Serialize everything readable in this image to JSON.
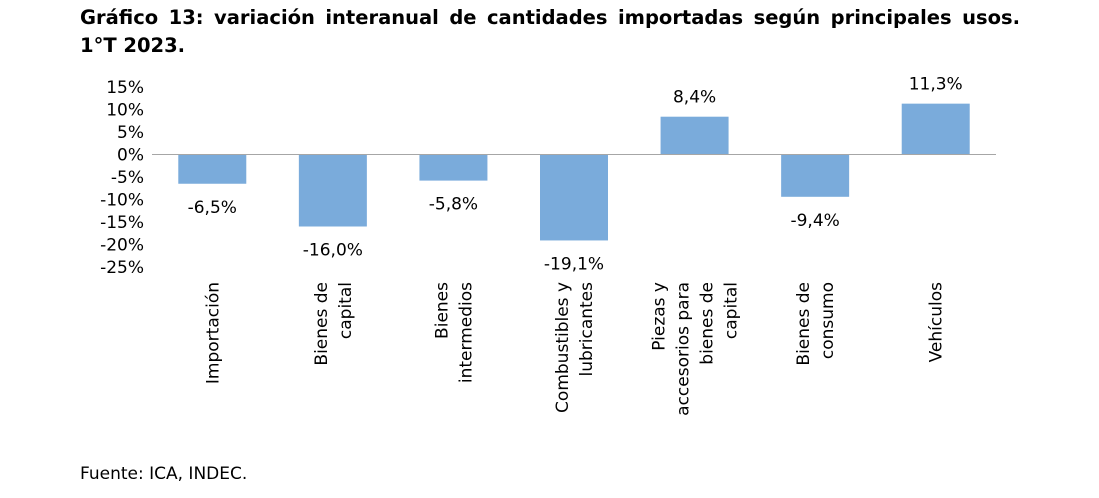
{
  "title": "Gráfico 13: variación interanual de cantidades importadas según principales usos. 1°T 2023.",
  "source": "Fuente: ICA, INDEC.",
  "colors": {
    "bar": "#7aabdb",
    "axis": "#a6a6a6"
  },
  "chart_data": {
    "type": "bar",
    "title": "Gráfico 13: variación interanual de cantidades importadas según principales usos. 1°T 2023.",
    "categories": [
      "Importación",
      "Bienes de capital",
      "Bienes intermedios",
      "Combustibles y lubricantes",
      "Piezas y accesorios para bienes de capital",
      "Bienes de consumo",
      "Vehículos"
    ],
    "category_lines": [
      [
        "Importación"
      ],
      [
        "Bienes de",
        "capital"
      ],
      [
        "Bienes",
        "intermedios"
      ],
      [
        "Combustibles y",
        "lubricantes"
      ],
      [
        "Piezas y",
        "accesorios para",
        "bienes de",
        "capital"
      ],
      [
        "Bienes de",
        "consumo"
      ],
      [
        "Vehículos"
      ]
    ],
    "values": [
      -6.5,
      -16.0,
      -5.8,
      -19.1,
      8.4,
      -9.4,
      11.3
    ],
    "data_labels": [
      "-6,5%",
      "-16,0%",
      "-5,8%",
      "-19,1%",
      "8,4%",
      "-9,4%",
      "11,3%"
    ],
    "ylim": [
      -25,
      15
    ],
    "yticks": [
      15,
      10,
      5,
      0,
      -5,
      -10,
      -15,
      -20,
      -25
    ],
    "ytick_labels": [
      "15%",
      "10%",
      "5%",
      "0%",
      "-5%",
      "-10%",
      "-15%",
      "-20%",
      "-25%"
    ],
    "xlabel": "",
    "ylabel": "",
    "grid": false,
    "legend": "none"
  }
}
